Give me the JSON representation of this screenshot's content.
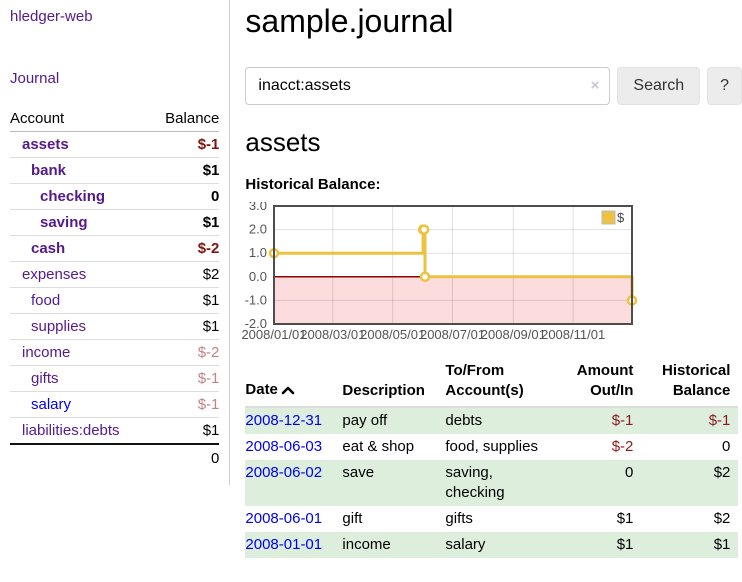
{
  "sidebar": {
    "brand": "hledger-web",
    "journal_link": "Journal",
    "accounts_table": {
      "headers": [
        "Account",
        "Balance"
      ],
      "rows": [
        {
          "name": "assets",
          "depth": 0,
          "bold": true,
          "link_style": "visited",
          "balance": "$-1",
          "balance_class": "neg-strong"
        },
        {
          "name": "bank",
          "depth": 1,
          "bold": true,
          "link_style": "visited",
          "balance": "$1",
          "balance_class": "pos-strong"
        },
        {
          "name": "checking",
          "depth": 2,
          "bold": true,
          "link_style": "visited",
          "balance": "0",
          "balance_class": "pos-strong"
        },
        {
          "name": "saving",
          "depth": 2,
          "bold": true,
          "link_style": "visited",
          "balance": "$1",
          "balance_class": "pos-strong"
        },
        {
          "name": "cash",
          "depth": 1,
          "bold": true,
          "link_style": "visited",
          "balance": "$-2",
          "balance_class": "neg-strong"
        },
        {
          "name": "expenses",
          "depth": 0,
          "bold": false,
          "link_style": "visited",
          "balance": "$2",
          "balance_class": "pos"
        },
        {
          "name": "food",
          "depth": 1,
          "bold": false,
          "link_style": "visited",
          "balance": "$1",
          "balance_class": "pos"
        },
        {
          "name": "supplies",
          "depth": 1,
          "bold": false,
          "link_style": "visited",
          "balance": "$1",
          "balance_class": "pos"
        },
        {
          "name": "income",
          "depth": 0,
          "bold": false,
          "link_style": "visited",
          "balance": "$-2",
          "balance_class": "neg-soft"
        },
        {
          "name": "gifts",
          "depth": 1,
          "bold": false,
          "link_style": "visited",
          "balance": "$-1",
          "balance_class": "neg-soft"
        },
        {
          "name": "salary",
          "depth": 1,
          "bold": false,
          "link_style": "unvisited",
          "balance": "$-1",
          "balance_class": "neg-soft"
        },
        {
          "name": "liabilities:debts",
          "depth": 0,
          "bold": false,
          "link_style": "visited",
          "balance": "$1",
          "balance_class": "pos"
        }
      ],
      "total": "0"
    }
  },
  "main": {
    "title": "sample.journal",
    "search": {
      "value": "inacct:assets",
      "clear_icon": "×",
      "search_button": "Search",
      "help_button": "?"
    },
    "account_heading": "assets",
    "section_label": "Historical Balance:"
  },
  "chart_data": {
    "type": "line",
    "title": "Historical Balance",
    "series": [
      {
        "name": "$",
        "step": true,
        "points": [
          [
            "2008-01-01",
            1
          ],
          [
            "2008-06-01",
            2
          ],
          [
            "2008-06-02",
            2
          ],
          [
            "2008-06-03",
            0
          ],
          [
            "2008-12-31",
            -1
          ]
        ]
      }
    ],
    "legend": [
      {
        "label": "$",
        "color": "#edc240"
      }
    ],
    "legend_position": "top-right",
    "x_ticks": [
      "2008/01/01",
      "2008/03/01",
      "2008/05/01",
      "2008/07/01",
      "2008/09/01",
      "2008/11/01"
    ],
    "y_ticks": [
      3.0,
      2.0,
      1.0,
      0.0,
      -1.0,
      -2.0
    ],
    "ylim": [
      -2,
      3
    ],
    "x_range": [
      "2008-01-01",
      "2008-12-31"
    ],
    "grid": true,
    "line_color": "#edc240",
    "marker_fill": "#ffffff",
    "negative_region_color": "#fcdcdc",
    "zero_line_color": "#8b0000",
    "border_color": "#4d4d4d",
    "tick_label_color": "#545454"
  },
  "register": {
    "headers": {
      "date": "Date",
      "description": "Description",
      "tofrom": [
        "To/From",
        "Account(s)"
      ],
      "amount": [
        "Amount",
        "Out/In"
      ],
      "balance": [
        "Historical",
        "Balance"
      ]
    },
    "rows": [
      {
        "date": "2008-12-31",
        "description": "pay off",
        "accounts": "debts",
        "amount": "$-1",
        "amount_negative": true,
        "balance": "$-1",
        "balance_negative": true
      },
      {
        "date": "2008-06-03",
        "description": "eat & shop",
        "accounts": "food, supplies",
        "amount": "$-2",
        "amount_negative": true,
        "balance": "0",
        "balance_negative": false
      },
      {
        "date": "2008-06-02",
        "description": "save",
        "accounts": "saving, checking",
        "amount": "0",
        "amount_negative": false,
        "balance": "$2",
        "balance_negative": false
      },
      {
        "date": "2008-06-01",
        "description": "gift",
        "accounts": "gifts",
        "amount": "$1",
        "amount_negative": false,
        "balance": "$2",
        "balance_negative": false
      },
      {
        "date": "2008-01-01",
        "description": "income",
        "accounts": "salary",
        "amount": "$1",
        "amount_negative": false,
        "balance": "$1",
        "balance_negative": false
      }
    ]
  }
}
